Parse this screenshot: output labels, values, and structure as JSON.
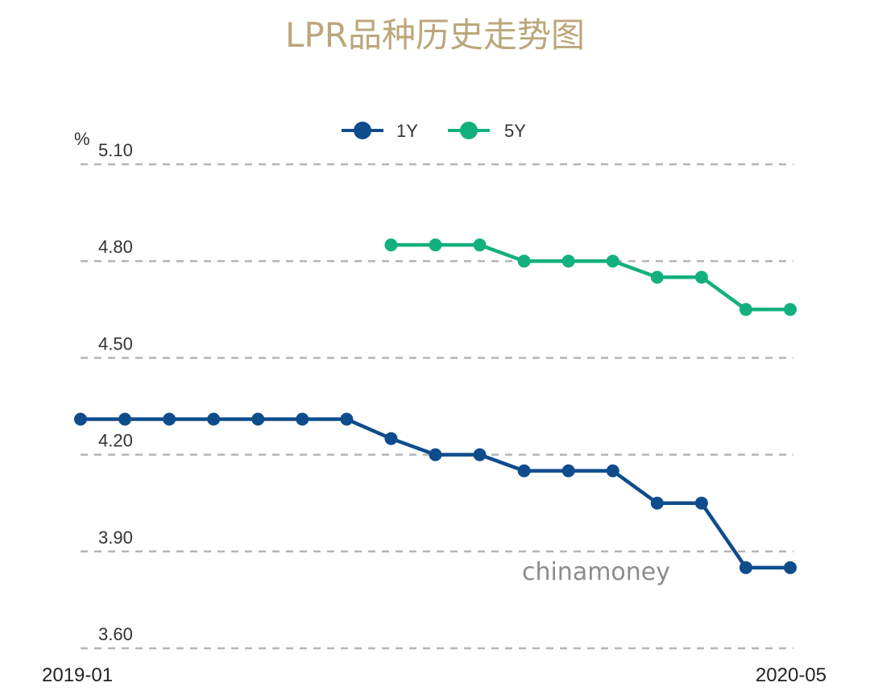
{
  "chart_data": {
    "type": "line",
    "title": "LPR品种历史走势图",
    "ylabel": "%",
    "xlabel": "",
    "x_start_label": "2019-01",
    "x_end_label": "2020-05",
    "ylim": [
      3.55,
      5.1
    ],
    "yticks": [
      "5.10",
      "4.80",
      "4.50",
      "4.20",
      "3.90",
      "3.60"
    ],
    "grid": true,
    "legend_position": "top-center",
    "watermark": "chinamoney",
    "series": [
      {
        "name": "1Y",
        "color": "#0e4c8c",
        "values": [
          4.31,
          4.31,
          4.31,
          4.31,
          4.31,
          4.31,
          4.31,
          4.25,
          4.2,
          4.2,
          4.15,
          4.15,
          4.15,
          4.05,
          4.05,
          3.85,
          3.85
        ]
      },
      {
        "name": "5Y",
        "color": "#13b07e",
        "values": [
          null,
          null,
          null,
          null,
          null,
          null,
          null,
          4.85,
          4.85,
          4.85,
          4.8,
          4.8,
          4.8,
          4.75,
          4.75,
          4.65,
          4.65
        ]
      }
    ]
  }
}
